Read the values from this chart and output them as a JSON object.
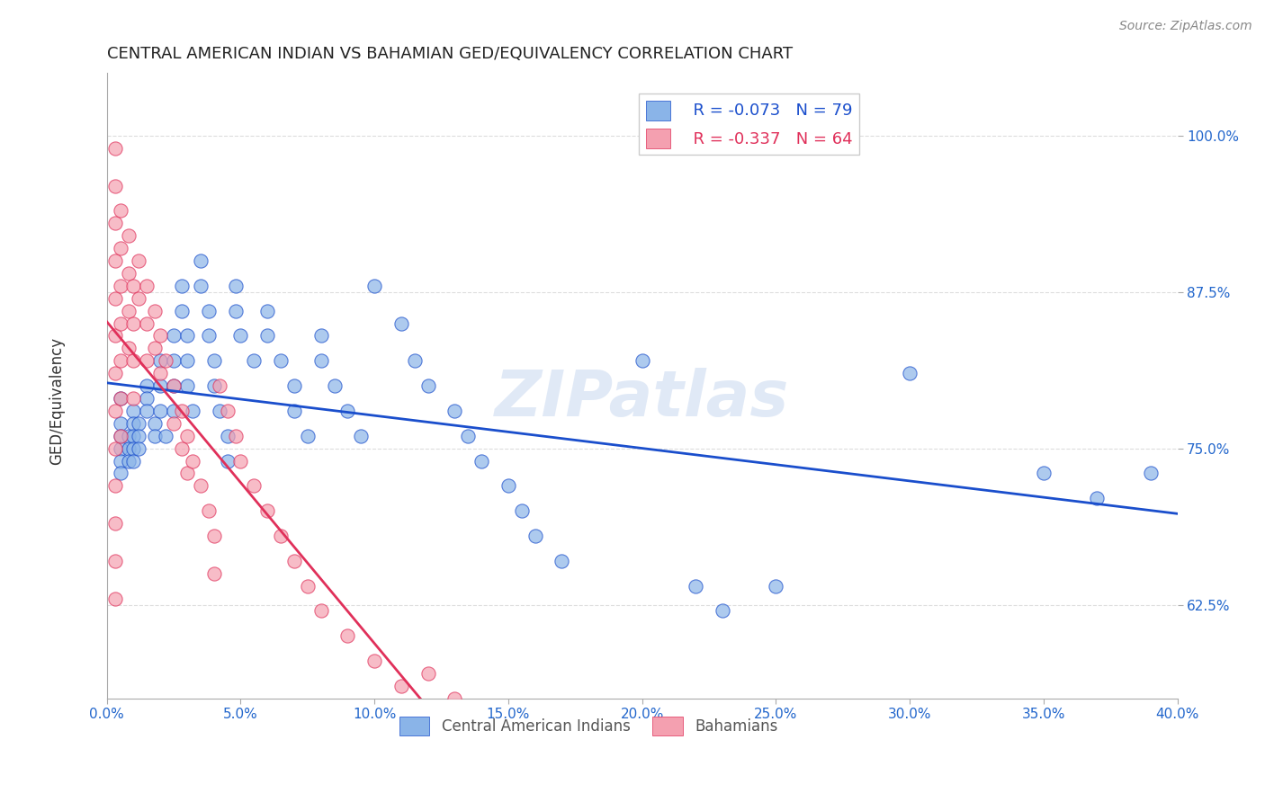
{
  "title": "CENTRAL AMERICAN INDIAN VS BAHAMIAN GED/EQUIVALENCY CORRELATION CHART",
  "source": "Source: ZipAtlas.com",
  "ylabel": "GED/Equivalency",
  "ytick_labels": [
    "62.5%",
    "75.0%",
    "87.5%",
    "100.0%"
  ],
  "ytick_values": [
    0.625,
    0.75,
    0.875,
    1.0
  ],
  "xlim": [
    0.0,
    0.4
  ],
  "ylim": [
    0.55,
    1.05
  ],
  "legend_r_blue": "R = -0.073",
  "legend_n_blue": "N = 79",
  "legend_r_pink": "R = -0.337",
  "legend_n_pink": "N = 64",
  "blue_color": "#8ab4e8",
  "pink_color": "#f4a0b0",
  "line_blue": "#1a4ecc",
  "line_pink": "#e0305a",
  "line_gray_dashed": "#cccccc",
  "blue_scatter": [
    [
      0.005,
      0.77
    ],
    [
      0.005,
      0.76
    ],
    [
      0.005,
      0.75
    ],
    [
      0.005,
      0.74
    ],
    [
      0.005,
      0.73
    ],
    [
      0.005,
      0.79
    ],
    [
      0.008,
      0.76
    ],
    [
      0.008,
      0.75
    ],
    [
      0.008,
      0.74
    ],
    [
      0.01,
      0.78
    ],
    [
      0.01,
      0.77
    ],
    [
      0.01,
      0.76
    ],
    [
      0.01,
      0.75
    ],
    [
      0.01,
      0.74
    ],
    [
      0.012,
      0.77
    ],
    [
      0.012,
      0.76
    ],
    [
      0.012,
      0.75
    ],
    [
      0.015,
      0.8
    ],
    [
      0.015,
      0.79
    ],
    [
      0.015,
      0.78
    ],
    [
      0.018,
      0.77
    ],
    [
      0.018,
      0.76
    ],
    [
      0.02,
      0.82
    ],
    [
      0.02,
      0.8
    ],
    [
      0.02,
      0.78
    ],
    [
      0.022,
      0.76
    ],
    [
      0.025,
      0.84
    ],
    [
      0.025,
      0.82
    ],
    [
      0.025,
      0.8
    ],
    [
      0.025,
      0.78
    ],
    [
      0.028,
      0.88
    ],
    [
      0.028,
      0.86
    ],
    [
      0.03,
      0.84
    ],
    [
      0.03,
      0.82
    ],
    [
      0.03,
      0.8
    ],
    [
      0.032,
      0.78
    ],
    [
      0.035,
      0.9
    ],
    [
      0.035,
      0.88
    ],
    [
      0.038,
      0.86
    ],
    [
      0.038,
      0.84
    ],
    [
      0.04,
      0.82
    ],
    [
      0.04,
      0.8
    ],
    [
      0.042,
      0.78
    ],
    [
      0.045,
      0.76
    ],
    [
      0.045,
      0.74
    ],
    [
      0.048,
      0.88
    ],
    [
      0.048,
      0.86
    ],
    [
      0.05,
      0.84
    ],
    [
      0.055,
      0.82
    ],
    [
      0.06,
      0.86
    ],
    [
      0.06,
      0.84
    ],
    [
      0.065,
      0.82
    ],
    [
      0.07,
      0.8
    ],
    [
      0.07,
      0.78
    ],
    [
      0.075,
      0.76
    ],
    [
      0.08,
      0.84
    ],
    [
      0.08,
      0.82
    ],
    [
      0.085,
      0.8
    ],
    [
      0.09,
      0.78
    ],
    [
      0.095,
      0.76
    ],
    [
      0.1,
      0.88
    ],
    [
      0.11,
      0.85
    ],
    [
      0.115,
      0.82
    ],
    [
      0.12,
      0.8
    ],
    [
      0.13,
      0.78
    ],
    [
      0.135,
      0.76
    ],
    [
      0.14,
      0.74
    ],
    [
      0.15,
      0.72
    ],
    [
      0.155,
      0.7
    ],
    [
      0.16,
      0.68
    ],
    [
      0.17,
      0.66
    ],
    [
      0.2,
      0.82
    ],
    [
      0.22,
      0.64
    ],
    [
      0.23,
      0.62
    ],
    [
      0.25,
      0.64
    ],
    [
      0.3,
      0.81
    ],
    [
      0.35,
      0.73
    ],
    [
      0.37,
      0.71
    ],
    [
      0.39,
      0.73
    ]
  ],
  "pink_scatter": [
    [
      0.003,
      0.99
    ],
    [
      0.003,
      0.96
    ],
    [
      0.003,
      0.93
    ],
    [
      0.003,
      0.9
    ],
    [
      0.003,
      0.87
    ],
    [
      0.003,
      0.84
    ],
    [
      0.003,
      0.81
    ],
    [
      0.003,
      0.78
    ],
    [
      0.003,
      0.75
    ],
    [
      0.003,
      0.72
    ],
    [
      0.003,
      0.69
    ],
    [
      0.003,
      0.66
    ],
    [
      0.003,
      0.63
    ],
    [
      0.005,
      0.94
    ],
    [
      0.005,
      0.91
    ],
    [
      0.005,
      0.88
    ],
    [
      0.005,
      0.85
    ],
    [
      0.005,
      0.82
    ],
    [
      0.005,
      0.79
    ],
    [
      0.005,
      0.76
    ],
    [
      0.008,
      0.92
    ],
    [
      0.008,
      0.89
    ],
    [
      0.008,
      0.86
    ],
    [
      0.008,
      0.83
    ],
    [
      0.01,
      0.88
    ],
    [
      0.01,
      0.85
    ],
    [
      0.01,
      0.82
    ],
    [
      0.01,
      0.79
    ],
    [
      0.012,
      0.9
    ],
    [
      0.012,
      0.87
    ],
    [
      0.015,
      0.88
    ],
    [
      0.015,
      0.85
    ],
    [
      0.015,
      0.82
    ],
    [
      0.018,
      0.86
    ],
    [
      0.018,
      0.83
    ],
    [
      0.02,
      0.84
    ],
    [
      0.02,
      0.81
    ],
    [
      0.022,
      0.82
    ],
    [
      0.025,
      0.8
    ],
    [
      0.025,
      0.77
    ],
    [
      0.028,
      0.78
    ],
    [
      0.028,
      0.75
    ],
    [
      0.03,
      0.76
    ],
    [
      0.03,
      0.73
    ],
    [
      0.032,
      0.74
    ],
    [
      0.035,
      0.72
    ],
    [
      0.038,
      0.7
    ],
    [
      0.04,
      0.68
    ],
    [
      0.04,
      0.65
    ],
    [
      0.042,
      0.8
    ],
    [
      0.045,
      0.78
    ],
    [
      0.048,
      0.76
    ],
    [
      0.05,
      0.74
    ],
    [
      0.055,
      0.72
    ],
    [
      0.06,
      0.7
    ],
    [
      0.065,
      0.68
    ],
    [
      0.07,
      0.66
    ],
    [
      0.075,
      0.64
    ],
    [
      0.08,
      0.62
    ],
    [
      0.09,
      0.6
    ],
    [
      0.1,
      0.58
    ],
    [
      0.11,
      0.56
    ],
    [
      0.12,
      0.57
    ],
    [
      0.13,
      0.55
    ]
  ],
  "watermark": "ZIPatlas",
  "background_color": "#ffffff",
  "grid_color": "#dddddd"
}
